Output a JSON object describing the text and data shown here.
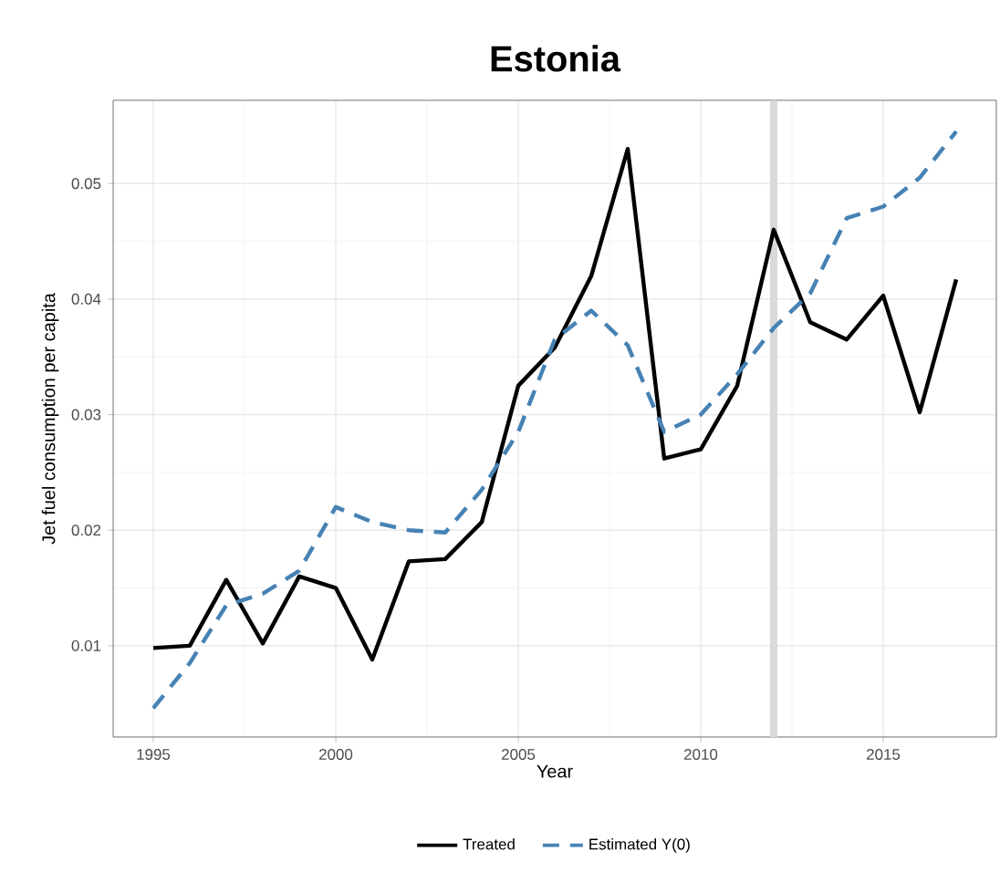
{
  "chart_data": {
    "type": "line",
    "title": "Estonia",
    "xlabel": "Year",
    "ylabel": "Jet fuel consumption per capita",
    "x": [
      1995,
      1996,
      1997,
      1998,
      1999,
      2000,
      2001,
      2002,
      2003,
      2004,
      2005,
      2006,
      2007,
      2008,
      2009,
      2010,
      2011,
      2012,
      2013,
      2014,
      2015,
      2016,
      2017
    ],
    "series": [
      {
        "name": "Treated",
        "color": "#000000",
        "line_style": "solid",
        "values": [
          0.0098,
          0.01,
          0.0157,
          0.0102,
          0.016,
          0.015,
          0.0088,
          0.0173,
          0.0175,
          0.0207,
          0.0325,
          0.0358,
          0.042,
          0.053,
          0.0262,
          0.027,
          0.0325,
          0.046,
          0.038,
          0.0365,
          0.0403,
          0.0302,
          0.0417
        ]
      },
      {
        "name": "Estimated Y(0)",
        "color": "#4682b4",
        "line_style": "dashed",
        "values": [
          0.0046,
          0.0085,
          0.0135,
          0.0145,
          0.0165,
          0.022,
          0.0207,
          0.02,
          0.0198,
          0.0235,
          0.0285,
          0.0365,
          0.039,
          0.036,
          0.0285,
          0.03,
          0.0335,
          0.0375,
          0.0405,
          0.047,
          0.048,
          0.0505,
          0.0545
        ]
      }
    ],
    "xlim": [
      1993.9,
      2018.1
    ],
    "ylim": [
      0.0021,
      0.0572
    ],
    "xticks": [
      1995,
      2000,
      2005,
      2010,
      2015
    ],
    "yticks": [
      0.01,
      0.02,
      0.03,
      0.04,
      0.05
    ],
    "ref_lines": [
      {
        "axis": "x",
        "value": 2012,
        "color": "#d9d9d9"
      }
    ],
    "grid": true,
    "legend": "bottom",
    "marker": "none"
  }
}
